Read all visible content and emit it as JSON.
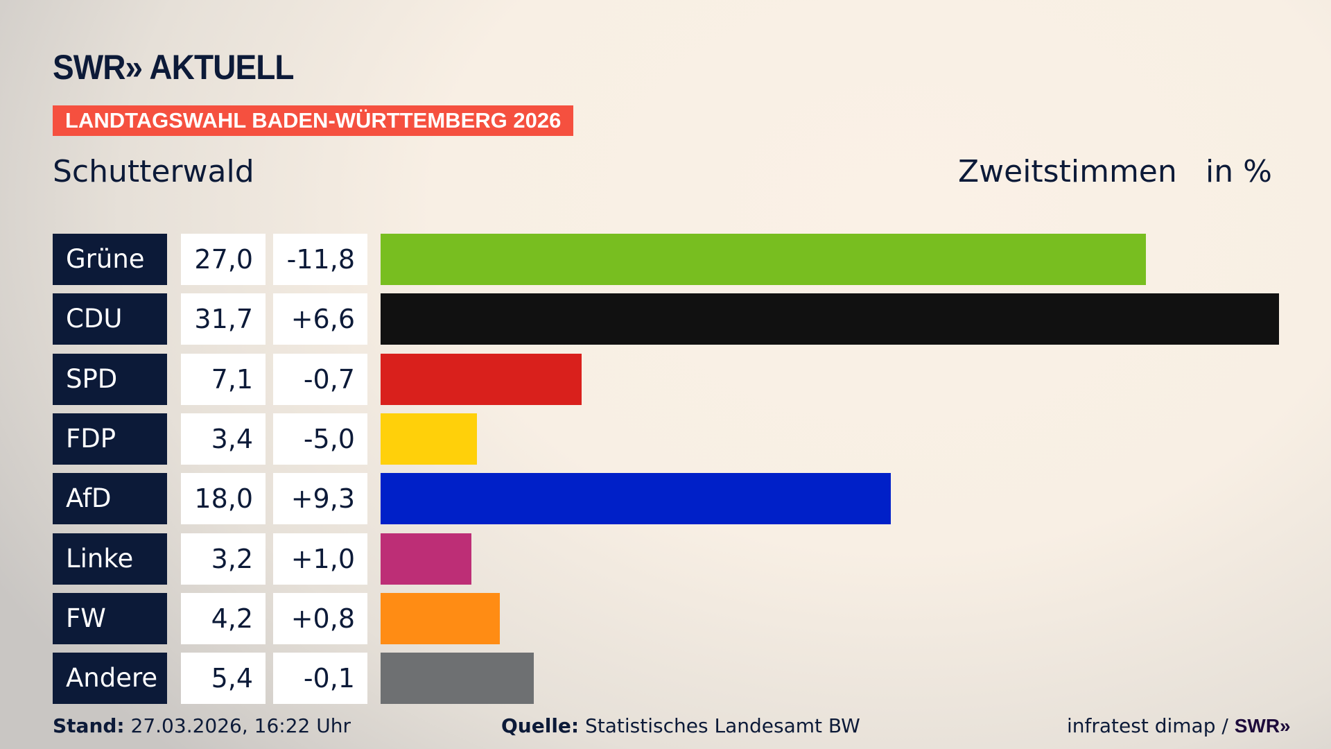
{
  "header": {
    "logo": "SWR» AKTUELL",
    "banner": "LANDTAGSWAHL BADEN-WÜRTTEMBERG 2026",
    "location": "Schutterwald",
    "vote_type": "Zweitstimmen",
    "unit": "in %"
  },
  "chart_data": {
    "type": "bar",
    "orientation": "horizontal",
    "categories": [
      "Grüne",
      "CDU",
      "SPD",
      "FDP",
      "AfD",
      "Linke",
      "FW",
      "Andere"
    ],
    "values": [
      27.0,
      31.7,
      7.1,
      3.4,
      18.0,
      3.2,
      4.2,
      5.4
    ],
    "value_labels": [
      "27,0",
      "31,7",
      "7,1",
      "3,4",
      "18,0",
      "3,2",
      "4,2",
      "5,4"
    ],
    "change_labels": [
      "-11,8",
      "+6,6",
      "-0,7",
      "-5,0",
      "+9,3",
      "+1,0",
      "+0,8",
      "-0,1"
    ],
    "colors": [
      "#78be20",
      "#111111",
      "#d9201c",
      "#ffd00a",
      "#0020c8",
      "#bd2e76",
      "#ff8c14",
      "#6e7072"
    ],
    "xlim": [
      0,
      31.7
    ],
    "grid": false
  },
  "footer": {
    "stand_label": "Stand:",
    "stand_value": "27.03.2026, 16:22 Uhr",
    "source_label": "Quelle:",
    "source_value": "Statistisches Landesamt BW",
    "credit": "infratest dimap / ",
    "credit_logo": "SWR»"
  }
}
